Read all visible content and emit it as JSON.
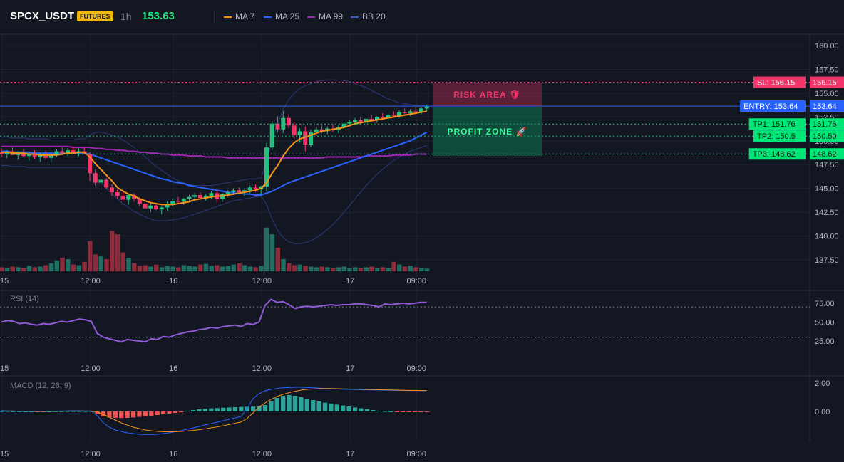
{
  "header": {
    "symbol": "SPCX_USDT",
    "badge": "FUTURES",
    "timeframe": "1h",
    "price": "153.63",
    "legend": [
      {
        "label": "MA 7",
        "color": "#f7931a"
      },
      {
        "label": "MA 25",
        "color": "#2962ff"
      },
      {
        "label": "MA 99",
        "color": "#9c27b0"
      },
      {
        "label": "BB 20",
        "color": "#1e3a8a"
      }
    ]
  },
  "zones": {
    "risk": "RISK AREA 🛡",
    "profit": "PROFIT ZONE 🚀"
  },
  "levels": [
    {
      "label": "SL: 156.15",
      "price_label": "156.15",
      "value": 156.15,
      "color": "#f2366a",
      "line_color": "#f2366a",
      "style": "dotted"
    },
    {
      "label": "ENTRY: 153.64",
      "price_label": "153.64",
      "value": 153.64,
      "color": "#2962ff",
      "line_color": "#2962ff",
      "style": "solid"
    },
    {
      "label": "TP1: 151.76",
      "price_label": "151.76",
      "value": 151.76,
      "color": "#00e676",
      "line_color": "#26c281",
      "style": "dotted"
    },
    {
      "label": "TP2: 150.5",
      "price_label": "150.50",
      "value": 150.5,
      "color": "#00e676",
      "line_color": "#26c281",
      "style": "dotted"
    },
    {
      "label": "TP3: 148.62",
      "price_label": "148.62",
      "value": 148.62,
      "color": "#00e676",
      "line_color": "#26c281",
      "style": "dotted"
    }
  ],
  "panels": {
    "rsi_label": "RSI (14)",
    "macd_label": "MACD (12, 26, 9)"
  },
  "chart_data": {
    "type": "candlestick",
    "x_tick_labels": [
      "15",
      "12:00",
      "16",
      "12:00",
      "17",
      "09:00"
    ],
    "price_axis": {
      "ticks": [
        "160.00",
        "157.50",
        "155.00",
        "152.50",
        "150.00",
        "147.50",
        "145.00",
        "142.50",
        "140.00",
        "137.50"
      ],
      "ylim": [
        136.3,
        161.2
      ]
    },
    "candles": [
      [
        148.8,
        149.2,
        148.3,
        148.6
      ],
      [
        148.6,
        149.0,
        148.2,
        148.9
      ],
      [
        148.9,
        149.3,
        148.5,
        148.5
      ],
      [
        148.5,
        148.9,
        148.0,
        148.7
      ],
      [
        148.7,
        149.1,
        148.3,
        148.4
      ],
      [
        148.4,
        148.8,
        147.9,
        148.6
      ],
      [
        148.6,
        149.0,
        148.1,
        148.3
      ],
      [
        148.3,
        148.7,
        147.8,
        148.5
      ],
      [
        148.5,
        148.9,
        148.0,
        148.2
      ],
      [
        148.2,
        148.6,
        147.7,
        148.6
      ],
      [
        148.6,
        149.1,
        148.3,
        148.9
      ],
      [
        148.9,
        149.3,
        148.5,
        148.7
      ],
      [
        148.7,
        149.2,
        148.4,
        149.0
      ],
      [
        149.0,
        149.4,
        148.6,
        148.8
      ],
      [
        148.8,
        149.2,
        148.4,
        148.9
      ],
      [
        148.9,
        149.3,
        148.6,
        148.6
      ],
      [
        148.6,
        148.8,
        145.8,
        146.6
      ],
      [
        146.6,
        147.0,
        145.3,
        145.6
      ],
      [
        145.6,
        146.2,
        144.8,
        145.9
      ],
      [
        145.9,
        146.1,
        144.9,
        145.1
      ],
      [
        145.1,
        145.4,
        144.2,
        144.6
      ],
      [
        144.6,
        144.9,
        143.9,
        144.2
      ],
      [
        144.2,
        144.6,
        143.6,
        143.8
      ],
      [
        143.8,
        144.4,
        143.3,
        144.3
      ],
      [
        144.3,
        144.5,
        143.6,
        143.9
      ],
      [
        143.9,
        144.1,
        143.1,
        143.4
      ],
      [
        143.4,
        143.7,
        142.6,
        142.9
      ],
      [
        142.9,
        143.4,
        142.5,
        143.2
      ],
      [
        143.2,
        143.5,
        142.7,
        142.8
      ],
      [
        142.8,
        143.1,
        142.3,
        143.0
      ],
      [
        143.0,
        143.6,
        142.7,
        143.4
      ],
      [
        143.4,
        143.9,
        143.1,
        143.7
      ],
      [
        143.7,
        144.1,
        143.4,
        143.6
      ],
      [
        143.6,
        144.0,
        143.3,
        143.9
      ],
      [
        143.9,
        144.3,
        143.6,
        144.1
      ],
      [
        144.1,
        144.5,
        143.8,
        144.3
      ],
      [
        144.3,
        144.6,
        143.9,
        144.0
      ],
      [
        144.0,
        144.4,
        143.7,
        144.2
      ],
      [
        144.2,
        144.7,
        143.9,
        144.5
      ],
      [
        144.5,
        144.8,
        143.5,
        143.9
      ],
      [
        143.9,
        144.5,
        143.6,
        144.4
      ],
      [
        144.4,
        144.8,
        144.1,
        144.6
      ],
      [
        144.6,
        145.0,
        144.3,
        144.8
      ],
      [
        144.8,
        145.1,
        144.5,
        144.6
      ],
      [
        144.6,
        145.0,
        144.2,
        144.8
      ],
      [
        144.8,
        145.3,
        144.5,
        145.1
      ],
      [
        145.1,
        145.4,
        144.6,
        144.9
      ],
      [
        144.9,
        145.3,
        144.3,
        145.2
      ],
      [
        145.2,
        149.8,
        144.7,
        149.3
      ],
      [
        149.3,
        152.1,
        149.0,
        151.8
      ],
      [
        151.8,
        152.6,
        150.9,
        151.2
      ],
      [
        151.2,
        153.1,
        150.8,
        152.4
      ],
      [
        152.4,
        152.8,
        151.3,
        151.6
      ],
      [
        151.6,
        152.0,
        150.2,
        150.6
      ],
      [
        150.6,
        151.3,
        149.8,
        151.0
      ],
      [
        151.0,
        151.5,
        148.9,
        149.6
      ],
      [
        149.6,
        151.2,
        149.3,
        150.9
      ],
      [
        150.9,
        151.4,
        150.5,
        151.2
      ],
      [
        151.2,
        151.6,
        150.8,
        151.0
      ],
      [
        151.0,
        151.5,
        150.7,
        151.3
      ],
      [
        151.3,
        151.7,
        150.9,
        151.1
      ],
      [
        151.1,
        151.6,
        150.8,
        151.4
      ],
      [
        151.4,
        152.0,
        151.1,
        151.8
      ],
      [
        151.8,
        152.2,
        151.5,
        152.0
      ],
      [
        152.0,
        152.4,
        151.7,
        152.2
      ],
      [
        152.2,
        152.5,
        151.8,
        151.9
      ],
      [
        151.9,
        152.4,
        151.6,
        152.3
      ],
      [
        152.3,
        152.7,
        152.0,
        152.2
      ],
      [
        152.2,
        152.6,
        151.9,
        152.5
      ],
      [
        152.5,
        152.9,
        152.2,
        152.4
      ],
      [
        152.4,
        152.8,
        152.1,
        152.7
      ],
      [
        152.7,
        153.1,
        152.5,
        152.6
      ],
      [
        152.6,
        153.2,
        152.4,
        153.0
      ],
      [
        153.0,
        153.4,
        152.6,
        152.9
      ],
      [
        152.9,
        153.3,
        152.6,
        153.1
      ],
      [
        153.1,
        153.5,
        152.8,
        153.0
      ],
      [
        153.0,
        153.5,
        152.8,
        153.4
      ],
      [
        153.4,
        153.8,
        153.1,
        153.63
      ]
    ],
    "ma7": [
      148.8,
      148.8,
      148.7,
      148.7,
      148.7,
      148.6,
      148.6,
      148.5,
      148.5,
      148.5,
      148.5,
      148.6,
      148.7,
      148.7,
      148.8,
      148.8,
      148.3,
      147.6,
      147.0,
      146.4,
      145.8,
      145.1,
      144.7,
      144.4,
      144.2,
      143.9,
      143.7,
      143.5,
      143.4,
      143.3,
      143.3,
      143.3,
      143.4,
      143.5,
      143.6,
      143.8,
      143.9,
      144.0,
      144.1,
      144.2,
      144.2,
      144.3,
      144.4,
      144.5,
      144.6,
      144.7,
      144.8,
      145.0,
      145.6,
      146.6,
      147.4,
      148.4,
      149.2,
      149.8,
      150.2,
      150.4,
      150.6,
      150.8,
      151.0,
      151.1,
      151.2,
      151.3,
      151.4,
      151.6,
      151.8,
      151.9,
      152.0,
      152.1,
      152.2,
      152.3,
      152.4,
      152.5,
      152.6,
      152.7,
      152.8,
      152.9,
      153.0,
      153.1
    ],
    "ma25": [
      148.9,
      148.9,
      148.8,
      148.8,
      148.8,
      148.8,
      148.7,
      148.7,
      148.7,
      148.7,
      148.7,
      148.7,
      148.7,
      148.7,
      148.7,
      148.7,
      148.6,
      148.4,
      148.2,
      148.0,
      147.8,
      147.6,
      147.4,
      147.2,
      147.0,
      146.8,
      146.6,
      146.4,
      146.2,
      146.0,
      145.9,
      145.7,
      145.6,
      145.5,
      145.3,
      145.2,
      145.1,
      145.0,
      144.9,
      144.8,
      144.7,
      144.6,
      144.5,
      144.5,
      144.4,
      144.4,
      144.3,
      144.3,
      144.5,
      144.7,
      145.0,
      145.3,
      145.6,
      145.8,
      146.0,
      146.2,
      146.4,
      146.6,
      146.8,
      147.0,
      147.2,
      147.4,
      147.6,
      147.8,
      148.0,
      148.2,
      148.4,
      148.6,
      148.8,
      149.0,
      149.2,
      149.4,
      149.6,
      149.8,
      150.0,
      150.3,
      150.6,
      150.9
    ],
    "ma99": [
      149.4,
      149.4,
      149.4,
      149.4,
      149.4,
      149.4,
      149.4,
      149.4,
      149.4,
      149.4,
      149.4,
      149.4,
      149.4,
      149.3,
      149.3,
      149.3,
      149.3,
      149.2,
      149.2,
      149.1,
      149.1,
      149.0,
      149.0,
      148.9,
      148.9,
      148.8,
      148.8,
      148.7,
      148.7,
      148.6,
      148.6,
      148.5,
      148.5,
      148.5,
      148.4,
      148.4,
      148.4,
      148.3,
      148.3,
      148.3,
      148.3,
      148.2,
      148.2,
      148.2,
      148.2,
      148.2,
      148.2,
      148.2,
      148.2,
      148.2,
      148.2,
      148.2,
      148.2,
      148.2,
      148.2,
      148.2,
      148.2,
      148.2,
      148.2,
      148.3,
      148.3,
      148.3,
      148.3,
      148.3,
      148.3,
      148.3,
      148.4,
      148.4,
      148.4,
      148.4,
      148.4,
      148.5,
      148.5,
      148.5,
      148.5,
      148.6,
      148.6,
      148.6
    ],
    "bb_upper": [
      150.4,
      150.4,
      150.3,
      150.3,
      150.3,
      150.2,
      150.2,
      150.2,
      150.2,
      150.1,
      150.1,
      150.1,
      150.1,
      150.1,
      150.2,
      150.2,
      150.6,
      150.9,
      150.9,
      150.8,
      150.6,
      150.4,
      150.1,
      149.7,
      149.3,
      148.8,
      148.3,
      147.8,
      147.3,
      146.9,
      146.5,
      146.1,
      145.8,
      145.6,
      145.4,
      145.3,
      145.3,
      145.3,
      145.3,
      145.4,
      145.5,
      145.6,
      145.7,
      145.8,
      145.9,
      146.0,
      146.0,
      146.1,
      147.8,
      150.0,
      151.8,
      153.3,
      154.3,
      155.0,
      155.5,
      155.8,
      156.0,
      156.2,
      156.3,
      156.4,
      156.4,
      156.4,
      156.3,
      156.2,
      156.0,
      155.8,
      155.6,
      155.3,
      155.0,
      154.7,
      154.4,
      154.2,
      154.0,
      153.9,
      153.8,
      153.7,
      153.7,
      153.7
    ],
    "bb_lower": [
      147.4,
      147.4,
      147.3,
      147.3,
      147.3,
      147.2,
      147.2,
      147.2,
      147.2,
      147.2,
      147.2,
      147.2,
      147.2,
      147.2,
      147.2,
      147.2,
      146.8,
      146.2,
      145.6,
      145.0,
      144.4,
      143.9,
      143.4,
      143.0,
      142.6,
      142.3,
      142.0,
      141.8,
      141.6,
      141.6,
      141.6,
      141.7,
      141.8,
      141.9,
      142.1,
      142.3,
      142.5,
      142.7,
      142.9,
      143.1,
      143.3,
      143.5,
      143.7,
      143.8,
      143.9,
      144.0,
      144.1,
      144.2,
      143.3,
      141.8,
      140.6,
      139.8,
      139.4,
      139.2,
      139.2,
      139.3,
      139.5,
      139.8,
      140.2,
      140.7,
      141.2,
      141.8,
      142.5,
      143.2,
      143.9,
      144.6,
      145.3,
      145.9,
      146.5,
      147.0,
      147.5,
      147.9,
      148.3,
      148.6,
      148.9,
      149.1,
      149.3,
      149.5
    ],
    "volume": [
      6,
      5,
      7,
      6,
      5,
      8,
      6,
      7,
      9,
      12,
      16,
      20,
      18,
      10,
      9,
      14,
      45,
      25,
      22,
      18,
      60,
      55,
      28,
      20,
      12,
      8,
      9,
      7,
      10,
      6,
      8,
      7,
      6,
      9,
      8,
      7,
      10,
      11,
      8,
      9,
      7,
      8,
      10,
      12,
      9,
      7,
      6,
      8,
      65,
      55,
      35,
      18,
      12,
      9,
      10,
      8,
      7,
      6,
      7,
      6,
      5,
      6,
      7,
      5,
      6,
      5,
      6,
      7,
      5,
      6,
      5,
      14,
      10,
      7,
      8,
      6,
      5,
      4
    ],
    "rsi": {
      "ylim": [
        10,
        88
      ],
      "ticks": [
        "75.00",
        "50.00",
        "25.00"
      ],
      "guides": [
        70,
        30
      ],
      "values": [
        50,
        52,
        51,
        48,
        49,
        47,
        46,
        48,
        47,
        49,
        51,
        50,
        52,
        54,
        53,
        51,
        35,
        30,
        28,
        26,
        24,
        27,
        26,
        25,
        24,
        28,
        27,
        31,
        30,
        33,
        35,
        37,
        38,
        40,
        41,
        43,
        42,
        44,
        45,
        46,
        44,
        48,
        47,
        50,
        72,
        80,
        76,
        77,
        73,
        68,
        70,
        71,
        70,
        71,
        72,
        73,
        72,
        73,
        73,
        74,
        74,
        73,
        72,
        70,
        74,
        73,
        74,
        75,
        74,
        75,
        76,
        76
      ]
    },
    "macd": {
      "ylim": [
        -2.2,
        2.3
      ],
      "ticks": [
        "2.00",
        "0.00"
      ],
      "hist": [
        0.02,
        0.02,
        0.01,
        0.01,
        0.0,
        0.0,
        -0.01,
        -0.01,
        0.0,
        0.01,
        0.01,
        0.02,
        0.02,
        0.02,
        0.02,
        0.02,
        -0.2,
        -0.35,
        -0.42,
        -0.45,
        -0.46,
        -0.45,
        -0.42,
        -0.38,
        -0.34,
        -0.3,
        -0.25,
        -0.2,
        -0.15,
        -0.1,
        -0.06,
        0.05,
        0.1,
        0.15,
        0.2,
        0.22,
        0.24,
        0.26,
        0.28,
        0.3,
        0.32,
        0.33,
        0.34,
        0.35,
        0.45,
        0.7,
        0.95,
        1.1,
        1.15,
        1.1,
        1.0,
        0.9,
        0.8,
        0.7,
        0.62,
        0.55,
        0.48,
        0.42,
        0.35,
        0.28,
        0.22,
        0.16,
        0.1,
        0.05,
        0.02,
        0.0,
        -0.02,
        -0.04,
        -0.05,
        -0.05,
        -0.04,
        -0.04
      ],
      "macd_line": [
        0.05,
        0.04,
        0.03,
        0.02,
        0.02,
        0.01,
        0.0,
        0.0,
        0.01,
        0.02,
        0.03,
        0.04,
        0.05,
        0.05,
        0.04,
        0.02,
        -0.3,
        -0.8,
        -1.1,
        -1.3,
        -1.4,
        -1.5,
        -1.55,
        -1.6,
        -1.62,
        -1.62,
        -1.6,
        -1.55,
        -1.5,
        -1.42,
        -1.35,
        -1.25,
        -1.15,
        -1.05,
        -0.95,
        -0.85,
        -0.75,
        -0.65,
        -0.55,
        -0.45,
        -0.35,
        0.2,
        0.9,
        1.25,
        1.45,
        1.55,
        1.62,
        1.66,
        1.68,
        1.7,
        1.7,
        1.68,
        1.66,
        1.64,
        1.62,
        1.6,
        1.58,
        1.56,
        1.55,
        1.54,
        1.53,
        1.52,
        1.51,
        1.5,
        1.5,
        1.49,
        1.48,
        1.48,
        1.47,
        1.47,
        1.46,
        1.46
      ],
      "signal_line": [
        0.03,
        0.03,
        0.03,
        0.02,
        0.02,
        0.02,
        0.01,
        0.01,
        0.01,
        0.02,
        0.02,
        0.03,
        0.03,
        0.03,
        0.03,
        0.03,
        -0.05,
        -0.2,
        -0.4,
        -0.6,
        -0.8,
        -0.95,
        -1.1,
        -1.2,
        -1.3,
        -1.35,
        -1.4,
        -1.42,
        -1.43,
        -1.42,
        -1.4,
        -1.37,
        -1.33,
        -1.28,
        -1.22,
        -1.15,
        -1.08,
        -1.0,
        -0.92,
        -0.83,
        -0.74,
        -0.5,
        -0.1,
        0.3,
        0.6,
        0.85,
        1.05,
        1.2,
        1.32,
        1.42,
        1.5,
        1.55,
        1.58,
        1.6,
        1.61,
        1.61,
        1.6,
        1.59,
        1.58,
        1.57,
        1.56,
        1.55,
        1.54,
        1.53,
        1.52,
        1.51,
        1.5,
        1.49,
        1.48,
        1.48,
        1.47,
        1.47
      ]
    }
  },
  "colors": {
    "up": "#26c281",
    "down": "#f2366a",
    "bg": "#131722",
    "grid": "#1e2230",
    "text": "#b2b5be"
  }
}
